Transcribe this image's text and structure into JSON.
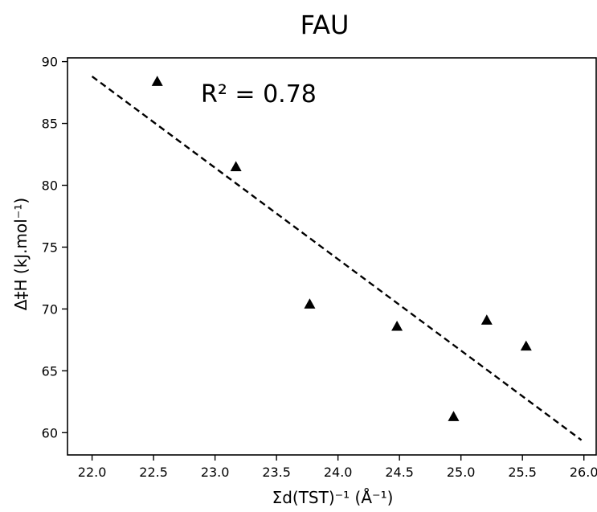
{
  "chart_data": {
    "type": "scatter",
    "title": "FAU",
    "xlabel": "Σd(TST)⁻¹ (Å⁻¹)",
    "ylabel": "Δ‡H (kJ.mol⁻¹)",
    "annotation": "R² = 0.78",
    "xlim": [
      21.8,
      26.1
    ],
    "ylim": [
      58.2,
      90.3
    ],
    "xticks": [
      22.0,
      22.5,
      23.0,
      23.5,
      24.0,
      24.5,
      25.0,
      25.5,
      26.0
    ],
    "yticks": [
      60,
      65,
      70,
      75,
      80,
      85,
      90
    ],
    "xtick_labels": [
      "22.0",
      "22.5",
      "23.0",
      "23.5",
      "24.0",
      "24.5",
      "25.0",
      "25.5",
      "26.0"
    ],
    "ytick_labels": [
      "60",
      "65",
      "70",
      "75",
      "80",
      "85",
      "90"
    ],
    "grid": false,
    "marker": "triangle",
    "series": [
      {
        "points": [
          {
            "x": 22.53,
            "y": 88.4
          },
          {
            "x": 23.17,
            "y": 81.5
          },
          {
            "x": 23.77,
            "y": 70.4
          },
          {
            "x": 24.48,
            "y": 68.6
          },
          {
            "x": 24.94,
            "y": 61.3
          },
          {
            "x": 25.21,
            "y": 69.1
          },
          {
            "x": 25.53,
            "y": 67.0
          }
        ]
      }
    ],
    "fit_line": {
      "style": "dashed",
      "x": [
        22.0,
        25.98
      ],
      "y": [
        88.8,
        59.4
      ]
    },
    "colors": {
      "marker": "#000000",
      "line": "#000000",
      "axis": "#000000"
    }
  }
}
